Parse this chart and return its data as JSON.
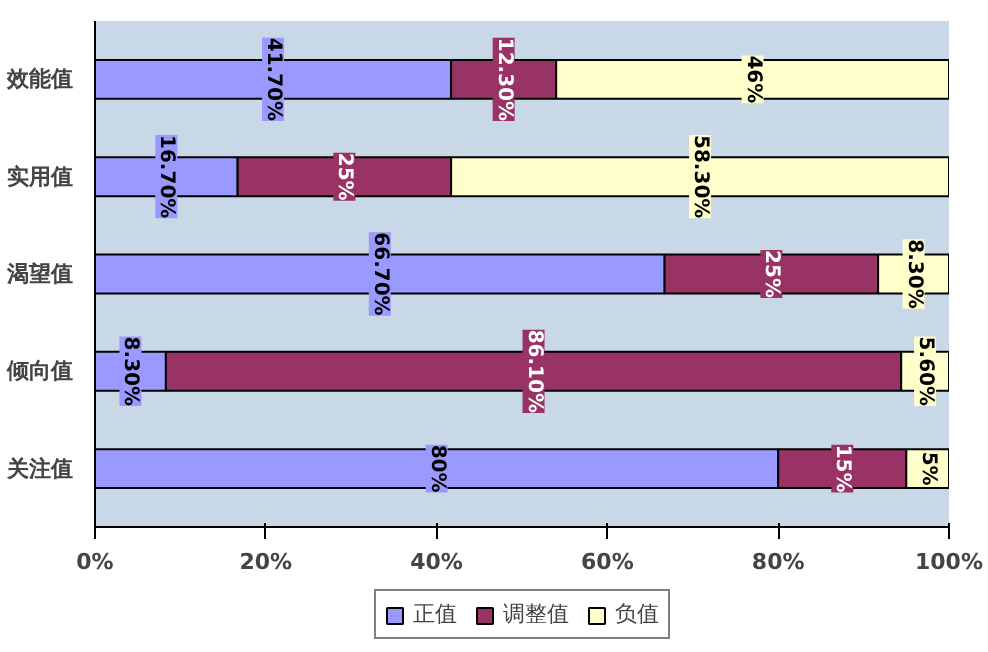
{
  "chart_data": {
    "type": "bar",
    "orientation": "horizontal",
    "stacked": true,
    "categories": [
      "效能值",
      "实用值",
      "渴望值",
      "倾向值",
      "关注值"
    ],
    "series": [
      {
        "name": "正值",
        "color": "#9999ff",
        "values": [
          41.7,
          16.7,
          66.7,
          8.3,
          80
        ],
        "value_labels": [
          "41.70%",
          "16.70%",
          "66.70%",
          "8.30%",
          "80%"
        ]
      },
      {
        "name": "调整值",
        "color": "#993366",
        "values": [
          12.3,
          25,
          25,
          86.1,
          15
        ],
        "value_labels": [
          "12.30%",
          "25%",
          "25%",
          "86.10%",
          "15%"
        ]
      },
      {
        "name": "负值",
        "color": "#ffffcc",
        "values": [
          46,
          58.3,
          8.3,
          5.6,
          5
        ],
        "value_labels": [
          "46%",
          "58.30%",
          "8.30%",
          "5.60%",
          "5%"
        ]
      }
    ],
    "xlim": [
      0,
      100
    ],
    "xticks": [
      {
        "value": 0,
        "label": "0%"
      },
      {
        "value": 20,
        "label": "20%"
      },
      {
        "value": 40,
        "label": "40%"
      },
      {
        "value": 60,
        "label": "60%"
      },
      {
        "value": 80,
        "label": "80%"
      },
      {
        "value": 100,
        "label": "100%"
      }
    ],
    "grid": false,
    "legend": "bottom"
  }
}
